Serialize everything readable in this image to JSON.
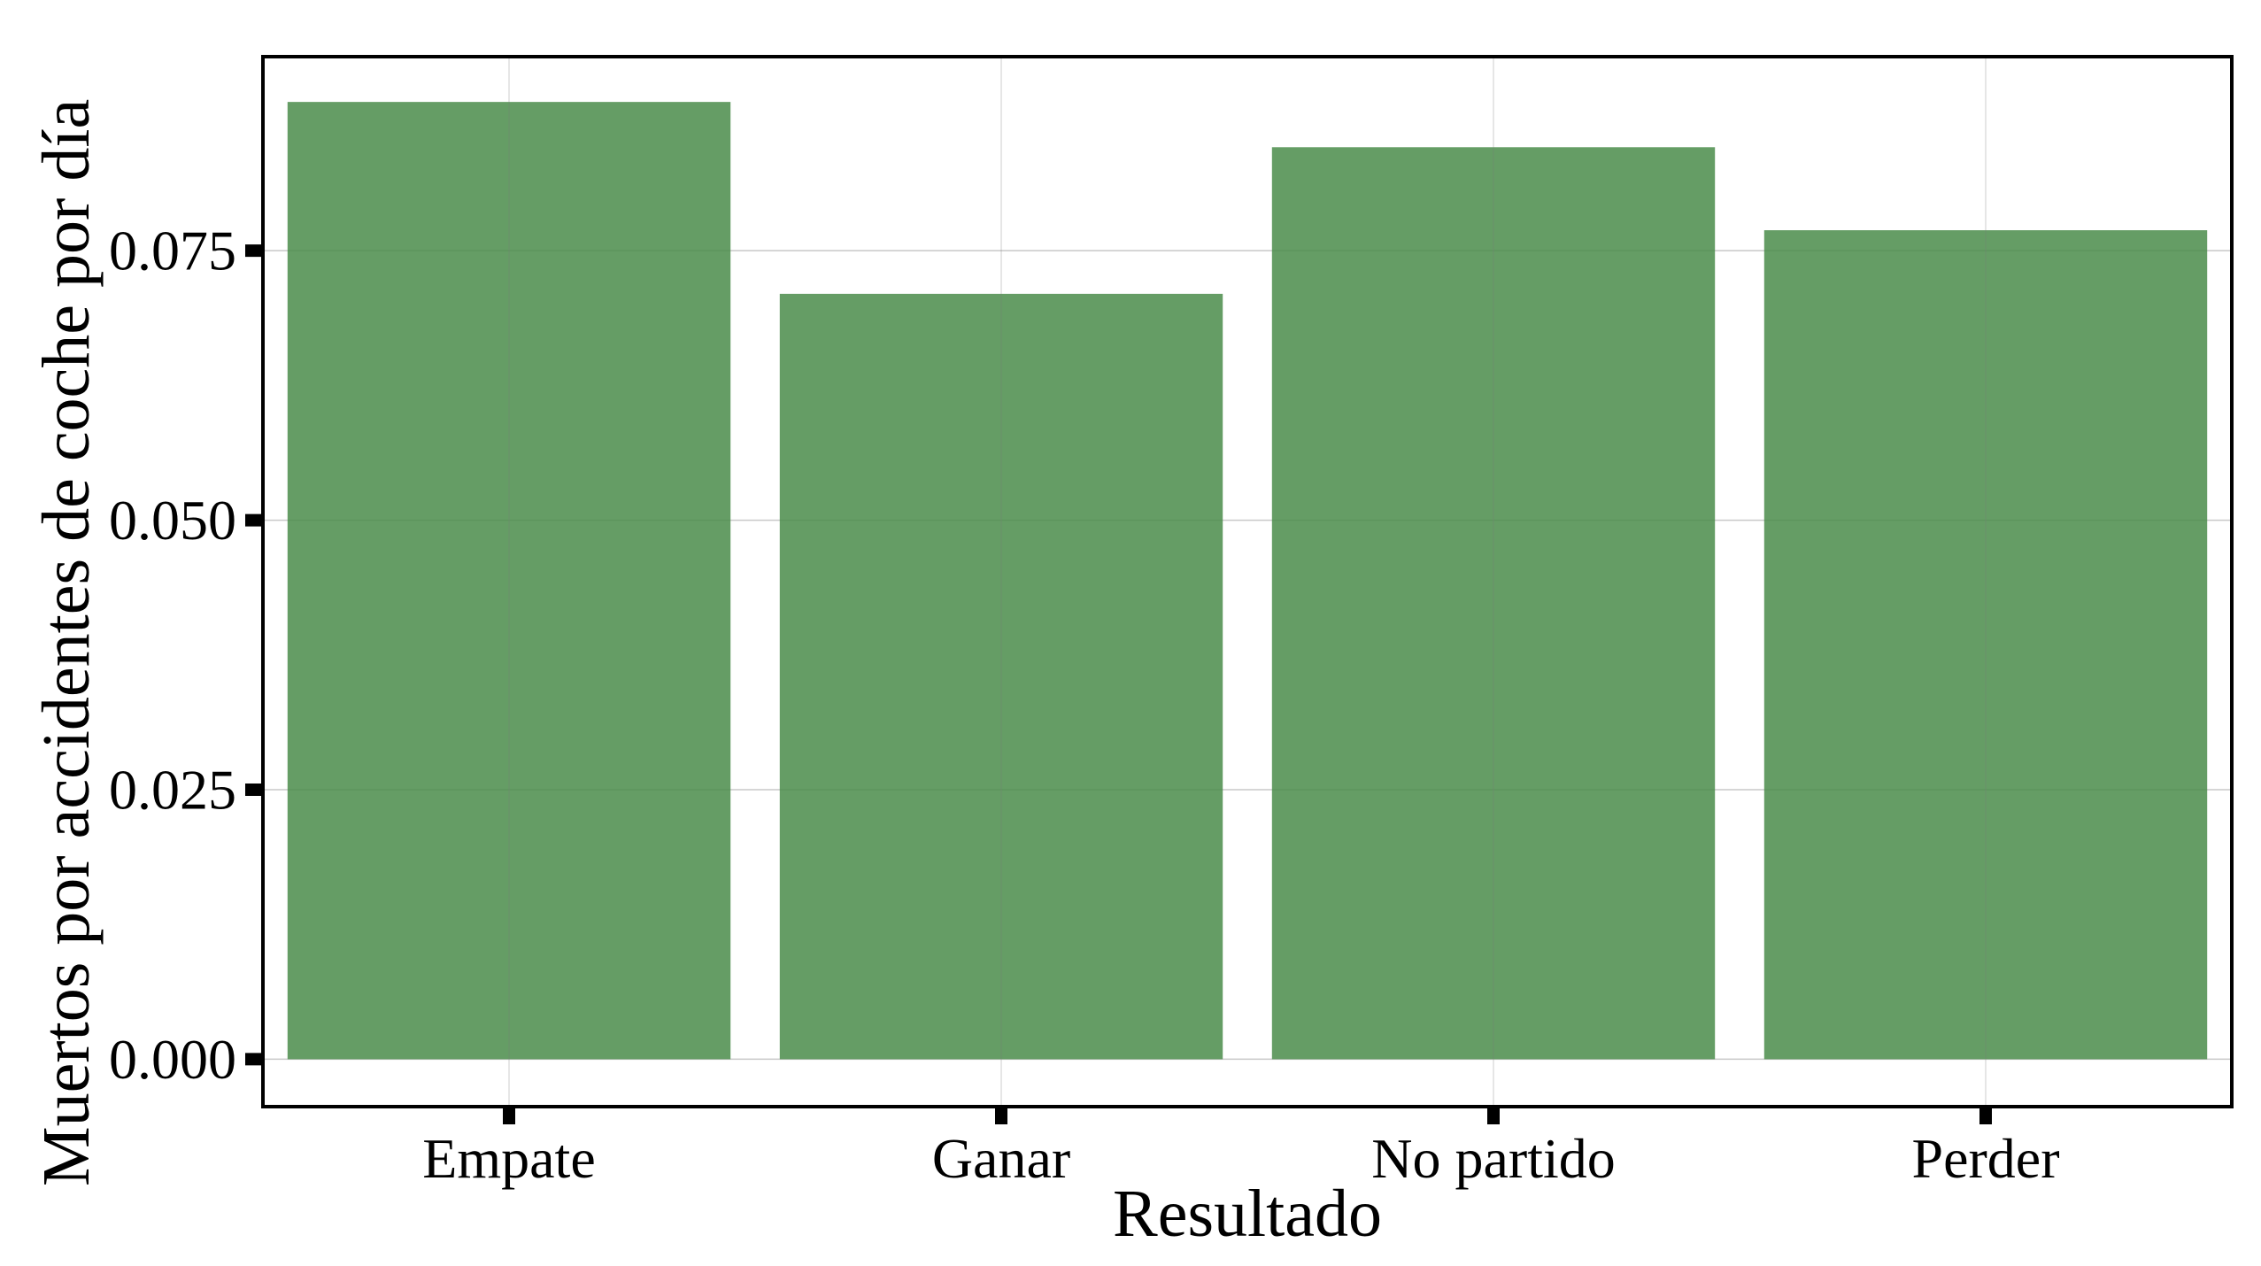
{
  "chart_data": {
    "type": "bar",
    "title": "",
    "xlabel": "Resultado",
    "ylabel": "Muertos por accidentes de coche por día",
    "categories": [
      "Empate",
      "Ganar",
      "No partido",
      "Perder"
    ],
    "values": [
      0.0888,
      0.071,
      0.0846,
      0.0769
    ],
    "ylim": [
      -0.0044,
      0.093
    ],
    "yticks": [
      0.0,
      0.025,
      0.05,
      0.075
    ],
    "ytick_labels": [
      "0.000",
      "0.025",
      "0.050",
      "0.075"
    ],
    "grid": true,
    "legend": "none",
    "colors": {
      "bar": "#4a8c4a",
      "grid": "#c8c8c8",
      "frame": "#000000"
    }
  }
}
